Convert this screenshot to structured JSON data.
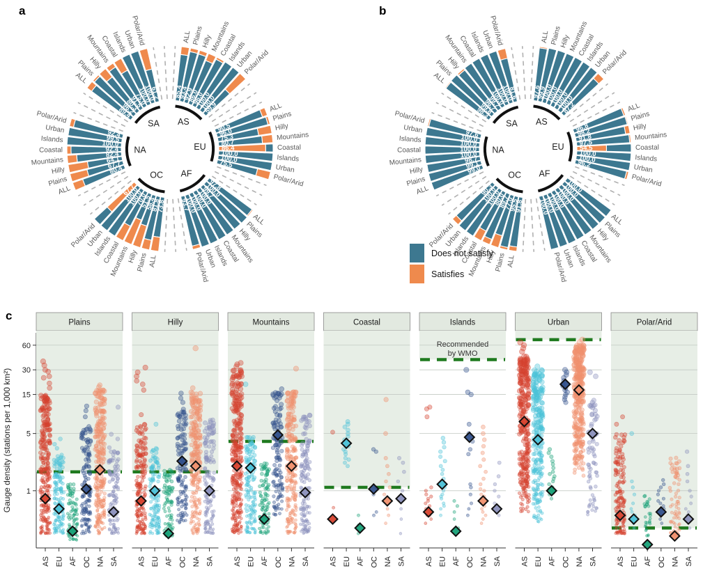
{
  "figure": {
    "panel_a_label": "a",
    "panel_b_label": "b",
    "panel_c_label": "c"
  },
  "legend": {
    "does_not_satisfy": "Does not satisfy",
    "satisfies": "Satisfies"
  },
  "colors": {
    "does_not_satisfy": "#3d7890",
    "satisfies": "#ef8a4d",
    "wmo_line": "#1f7a1f",
    "facet_bg": "#e7eee6",
    "strip_bg": "#e2e9e0",
    "grid": "#c3c9c3",
    "continents": {
      "AS": "#d6432f",
      "EU": "#4cc2d8",
      "AF": "#17a077",
      "OC": "#33518c",
      "NA": "#f0906e",
      "SA": "#8b90bc"
    }
  },
  "chart_data": [
    {
      "type": "bar",
      "subtype": "radial-stacked-percent",
      "panel": "a",
      "legend": [
        "Does not satisfy",
        "Satisfies"
      ],
      "categories": [
        "ALL",
        "Plains",
        "Hilly",
        "Mountains",
        "Coastal",
        "Islands",
        "Urban",
        "Polar/Arid"
      ],
      "sector_order": [
        "AS",
        "EU",
        "AF",
        "OC",
        "NA",
        "SA"
      ],
      "sector_starts": {
        "AS": 6,
        "EU": 66,
        "AF": 126,
        "OC": 186,
        "NA": 246,
        "SA": 306
      },
      "sectors": {
        "AS": [
          85.4,
          93.4,
          92.9,
          86.0,
          96.0,
          100.0,
          100.0,
          59.9
        ],
        "EU": [
          90.5,
          96.0,
          75.3,
          80.7,
          86.4,
          100.0,
          100.0,
          75.5
        ],
        "AF": [
          97.8,
          100.0,
          99.7,
          100.0,
          100.0,
          100.0,
          100.0,
          93.7
        ],
        "OC": [
          73.8,
          81.8,
          58.4,
          51.5,
          70.0,
          100.0,
          100.0,
          67.7
        ],
        "NA": [
          80.4,
          67.7,
          64.1,
          82.4,
          92.4,
          100.0,
          99.5,
          92.4
        ],
        "SA": [
          89.4,
          96.2,
          80.3,
          91.5,
          75.0,
          100.0,
          100.0,
          61.2
        ]
      },
      "value_is_satisfies": [
        [
          "EU",
          "Coastal"
        ],
        [
          "OC",
          "Polar/Arid"
        ]
      ]
    },
    {
      "type": "bar",
      "subtype": "radial-stacked-percent",
      "panel": "b",
      "legend": [
        "Does not satisfy",
        "Satisfies"
      ],
      "categories": [
        "ALL",
        "Plains",
        "Hilly",
        "Mountains",
        "Coastal",
        "Islands",
        "Urban",
        "Polar/Arid"
      ],
      "sector_order": [
        "AS",
        "EU",
        "AF",
        "OC",
        "NA",
        "SA"
      ],
      "sector_starts": {
        "AS": 6,
        "EU": 66,
        "AF": 126,
        "OC": 186,
        "NA": 246,
        "SA": 306
      },
      "sectors": {
        "AS": [
          97.6,
          99.9,
          100.0,
          100.0,
          100.0,
          100.0,
          100.0,
          87.2
        ],
        "EU": [
          96.8,
          98.2,
          91.8,
          97.5,
          54.5,
          100.0,
          100.0,
          96.2
        ],
        "AF": [
          100.0,
          100.0,
          100.0,
          100.0,
          100.0,
          100.0,
          100.0,
          100.0
        ],
        "OC": [
          91.8,
          95.5,
          77.0,
          89.7,
          80.0,
          100.0,
          100.0,
          90.3
        ],
        "NA": [
          99.0,
          99.1,
          98.7,
          100.0,
          100.0,
          100.0,
          100.0,
          97.6
        ],
        "SA": [
          98.3,
          99.8,
          96.7,
          99.7,
          100.0,
          100.0,
          100.0,
          81.6
        ]
      },
      "value_is_satisfies": [
        [
          "EU",
          "Coastal"
        ]
      ]
    },
    {
      "type": "scatter",
      "subtype": "jitter-strips",
      "panel": "c",
      "ylabel": "Gauge density (stations per 1,000 km²)",
      "yticks": [
        1,
        5,
        15,
        30,
        60
      ],
      "ylim": [
        0.2,
        85
      ],
      "wmo_note": [
        "Recommended",
        "by WMO"
      ],
      "continents": [
        "AS",
        "EU",
        "AF",
        "OC",
        "NA",
        "SA"
      ],
      "facets": [
        {
          "name": "Plains",
          "wmo": 1.7,
          "strips": {
            "AS": {
              "d": 0.8,
              "r": [
                0.3,
                15
              ],
              "n": 260,
              "o": [
                18,
                20.5,
                24,
                25,
                28.5,
                30,
                34,
                38
              ],
              "k": 1.3
            },
            "EU": {
              "d": 0.6,
              "r": [
                0.3,
                2.8
              ],
              "n": 150,
              "o": [
                3.3,
                3.7,
                4.3
              ]
            },
            "AF": {
              "d": 0.32,
              "r": [
                0.25,
                1.3
              ],
              "n": 90,
              "o": []
            },
            "OC": {
              "d": 1.05,
              "r": [
                0.3,
                6.5
              ],
              "n": 140,
              "o": [
                8,
                9.5,
                10.8
              ]
            },
            "NA": {
              "d": 1.8,
              "r": [
                0.3,
                17
              ],
              "n": 260,
              "o": [
                18.5,
                19.5
              ],
              "k": 1.1
            },
            "SA": {
              "d": 0.55,
              "r": [
                0.3,
                3.4
              ],
              "n": 110,
              "o": [
                4.3,
                4.9,
                10.5
              ]
            }
          }
        },
        {
          "name": "Hilly",
          "wmo": 1.7,
          "strips": {
            "AS": {
              "d": 0.75,
              "r": [
                0.3,
                6.5
              ],
              "n": 190,
              "o": [
                8.5,
                17,
                20,
                22,
                25,
                28,
                32
              ]
            },
            "EU": {
              "d": 1.0,
              "r": [
                0.3,
                3.4
              ],
              "n": 130,
              "o": [
                6.5
              ]
            },
            "AF": {
              "d": 0.3,
              "r": [
                0.28,
                2.0
              ],
              "n": 80,
              "o": []
            },
            "OC": {
              "d": 2.3,
              "r": [
                0.4,
                10
              ],
              "n": 130,
              "o": [
                12,
                13.5,
                15.5
              ],
              "k": 1.0
            },
            "NA": {
              "d": 2.0,
              "r": [
                0.3,
                16
              ],
              "n": 230,
              "o": [
                18,
                55
              ],
              "k": 1.1
            },
            "SA": {
              "d": 1.0,
              "r": [
                0.3,
                7.5
              ],
              "n": 140,
              "o": []
            }
          }
        },
        {
          "name": "Mountains",
          "wmo": 4.0,
          "strips": {
            "AS": {
              "d": 2.0,
              "r": [
                0.3,
                30
              ],
              "n": 300,
              "o": [
                33,
                35,
                36.5
              ],
              "k": 1.2
            },
            "EU": {
              "d": 1.9,
              "r": [
                0.3,
                4.6
              ],
              "n": 140,
              "o": [
                20
              ]
            },
            "AF": {
              "d": 0.45,
              "r": [
                0.3,
                2.2
              ],
              "n": 90,
              "o": []
            },
            "OC": {
              "d": 4.8,
              "r": [
                0.5,
                16
              ],
              "n": 120,
              "o": [
                17.5
              ],
              "k": 0.9
            },
            "NA": {
              "d": 2.0,
              "r": [
                0.3,
                17
              ],
              "n": 220,
              "o": [
                31
              ],
              "k": 1.1
            },
            "SA": {
              "d": 0.95,
              "r": [
                0.3,
                8.5
              ],
              "n": 140,
              "o": []
            }
          }
        },
        {
          "name": "Coastal",
          "wmo": 1.1,
          "strips": {
            "AS": {
              "d": 0.45,
              "p": [
                0.62,
                5.2
              ]
            },
            "EU": {
              "d": 3.8,
              "p": [
                2,
                2.2,
                2.4,
                2.5,
                2.8,
                3,
                3.2,
                3.5,
                3.8,
                4.2,
                4.6,
                5,
                5.5,
                6,
                6.5,
                7
              ]
            },
            "AF": {
              "d": 0.35,
              "p": [
                0.3,
                0.38,
                0.5
              ]
            },
            "OC": {
              "d": 1.05,
              "p": [
                0.5,
                0.55,
                0.9,
                3.0,
                3.2
              ]
            },
            "NA": {
              "d": 0.75,
              "p": [
                0.4,
                0.5,
                0.6,
                0.7,
                0.8,
                0.9,
                1.1,
                1.3,
                1.6,
                2,
                2.5,
                5,
                13
              ]
            },
            "SA": {
              "d": 0.8,
              "p": [
                0.3,
                0.45,
                0.6,
                0.8,
                1,
                1.3,
                1.7,
                2.2,
                2.5
              ]
            }
          }
        },
        {
          "name": "Islands",
          "wmo": 40,
          "strips": {
            "AS": {
              "d": 0.55,
              "p": [
                0.4,
                0.45,
                0.5,
                0.55,
                0.6,
                0.65,
                0.7,
                0.75,
                0.8,
                0.85,
                0.9,
                1,
                1.1,
                0.5,
                0.6,
                8,
                10,
                10.5
              ]
            },
            "EU": {
              "d": 1.2,
              "p": [
                0.5,
                0.6,
                0.7,
                0.8,
                0.9,
                1,
                1.1,
                1.2,
                1.4,
                1.6,
                1.8,
                2,
                2.3,
                2.6,
                3,
                3.4,
                3.9,
                4.4,
                0.65,
                0.85
              ]
            },
            "AF": {
              "d": 0.32,
              "p": [
                0.35,
                0.45,
                0.55,
                0.65,
                0.75
              ]
            },
            "OC": {
              "d": 4.5,
              "p": [
                0.5,
                0.7,
                0.9,
                1.1,
                2.8,
                3.2,
                4,
                5,
                6.5,
                15,
                16,
                30,
                0.6,
                1.2
              ]
            },
            "NA": {
              "d": 0.75,
              "p": [
                0.4,
                0.5,
                0.55,
                0.6,
                0.7,
                0.8,
                0.9,
                1,
                1.2,
                1.4,
                1.7,
                2,
                2.4,
                2.9,
                3.5,
                4.2,
                5,
                6,
                0.65,
                0.45,
                1.05,
                0.85
              ]
            },
            "SA": {
              "d": 0.6,
              "p": [
                0.5,
                0.6,
                0.7,
                0.85,
                1,
                1.2,
                1.5,
                2.2
              ]
            }
          }
        },
        {
          "name": "Urban",
          "wmo": 70,
          "strips": {
            "AS": {
              "d": 7,
              "r": [
                0.5,
                45
              ],
              "n": 280,
              "o": [
                50,
                55,
                60,
                65
              ],
              "k": 0.85
            },
            "EU": {
              "d": 4.2,
              "r": [
                0.4,
                30
              ],
              "n": 240,
              "o": [
                33
              ],
              "k": 0.95
            },
            "AF": {
              "d": 1.0,
              "p": [
                0.8,
                0.9,
                1,
                1.1,
                1.2,
                1.3,
                1.5,
                1.7,
                1.9,
                2.1,
                2.3,
                2.6,
                2.9,
                3.2,
                1.4,
                1.6,
                1.05,
                0.95
              ]
            },
            "OC": {
              "d": 20,
              "p": [
                12,
                13,
                15,
                16,
                17,
                18,
                20,
                22,
                24,
                26,
                28,
                30,
                14,
                19
              ]
            },
            "NA": {
              "d": 17,
              "r": [
                1.5,
                60
              ],
              "n": 280,
              "o": [
                65,
                70
              ],
              "k": 0.8
            },
            "SA": {
              "d": 5,
              "r": [
                0.5,
                13
              ],
              "n": 70,
              "o": [
                25,
                28
              ],
              "k": 1.0
            }
          }
        },
        {
          "name": "Polar/Arid",
          "wmo": 0.35,
          "strips": {
            "AS": {
              "d": 0.5,
              "r": [
                0.3,
                5
              ],
              "n": 150,
              "o": [
                6.5,
                8
              ],
              "k": 1.5
            },
            "EU": {
              "d": 0.45,
              "p": [
                0.35,
                0.4,
                0.45,
                0.5,
                0.6,
                0.7,
                0.9,
                1.1,
                1.3,
                5,
                0.55
              ]
            },
            "AF": {
              "d": 0.22,
              "r": [
                0.28,
                0.95
              ],
              "n": 28,
              "o": []
            },
            "OC": {
              "d": 0.55,
              "p": [
                0.4,
                0.45,
                0.5,
                0.6,
                0.7,
                0.8,
                0.9,
                1,
                1.1,
                1.2,
                1.35,
                0.55,
                0.65,
                0.75
              ]
            },
            "NA": {
              "d": 0.28,
              "r": [
                0.28,
                2.6
              ],
              "n": 75,
              "o": [],
              "k": 1.6
            },
            "SA": {
              "d": 0.45,
              "p": [
                0.35,
                0.45,
                0.55,
                0.7,
                0.85,
                1,
                1.3,
                1.6,
                2,
                3,
                0.5,
                0.6
              ]
            }
          }
        }
      ]
    }
  ]
}
